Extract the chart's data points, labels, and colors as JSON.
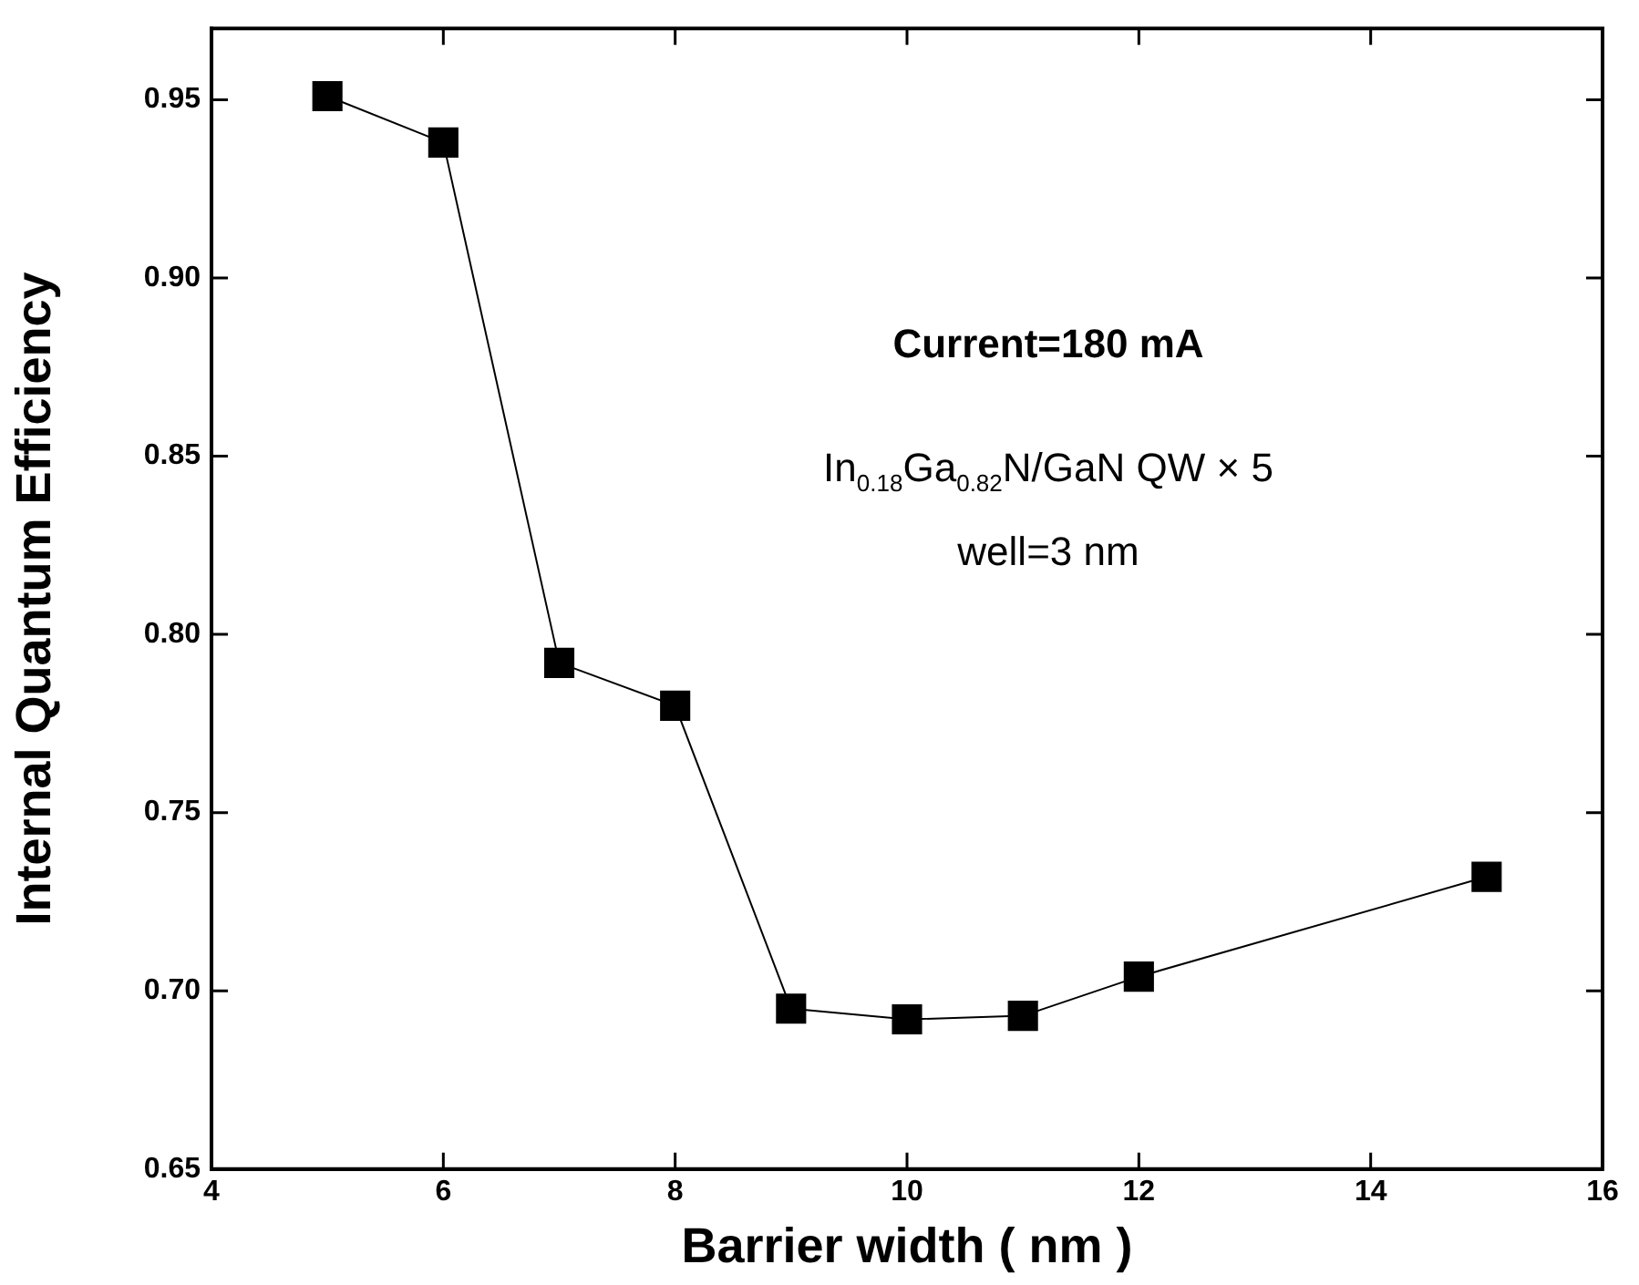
{
  "chart_data": {
    "type": "line",
    "xlabel": "Barrier width ( nm )",
    "ylabel": "Internal Quantum Efficiency",
    "x": [
      5,
      6,
      7,
      8,
      9,
      10,
      11,
      12,
      15
    ],
    "series": [
      {
        "color": "#000000",
        "values": [
          0.951,
          0.938,
          0.792,
          0.78,
          0.695,
          0.692,
          0.693,
          0.704,
          0.732
        ]
      }
    ],
    "xlim": [
      4,
      16
    ],
    "xticks": [
      4,
      6,
      8,
      10,
      12,
      14,
      16
    ],
    "ylim": [
      0.65,
      0.97
    ],
    "yticks": [
      {
        "value": 0.65,
        "label": "0.65"
      },
      {
        "value": 0.7,
        "label": "0.70"
      },
      {
        "value": 0.75,
        "label": "0.75"
      },
      {
        "value": 0.8,
        "label": "0.80"
      },
      {
        "value": 0.85,
        "label": "0.85"
      },
      {
        "value": 0.9,
        "label": "0.90"
      },
      {
        "value": 0.95,
        "label": "0.95"
      }
    ],
    "grid": false,
    "legend": false,
    "marker": "square",
    "line_style": "solid",
    "annotations": [
      "Current=180 mA",
      "In$_{0.18}$Ga$_{0.82}$N/GaN QW × 5",
      "well=3 nm"
    ]
  }
}
